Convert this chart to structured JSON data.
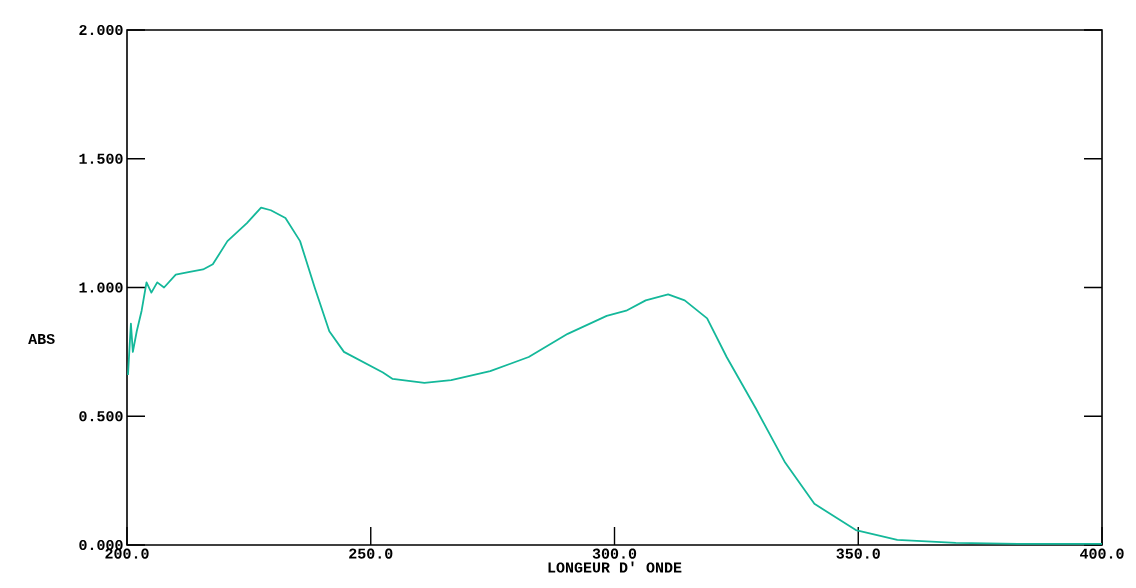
{
  "chart_data": {
    "type": "line",
    "xlabel": "LONGEUR D' ONDE",
    "ylabel": "ABS",
    "xlim": [
      200,
      400
    ],
    "ylim": [
      0,
      2
    ],
    "xticks": [
      {
        "value": 200,
        "label": "200.0"
      },
      {
        "value": 250,
        "label": "250.0"
      },
      {
        "value": 300,
        "label": "300.0"
      },
      {
        "value": 350,
        "label": "350.0"
      },
      {
        "value": 400,
        "label": "400.0"
      }
    ],
    "yticks": [
      {
        "value": 0,
        "label": "0.000"
      },
      {
        "value": 0.5,
        "label": "0.500"
      },
      {
        "value": 1,
        "label": "1.000"
      },
      {
        "value": 1.5,
        "label": "1.500"
      },
      {
        "value": 2,
        "label": "2.000"
      }
    ],
    "series": [
      {
        "color": "#14b89a",
        "x": [
          200.2,
          200.8,
          201.2,
          202,
          203,
          204,
          205,
          206.2,
          207.6,
          210,
          212.6,
          215.6,
          217.6,
          220.6,
          224.6,
          227.5,
          229.5,
          232.5,
          235.5,
          238.5,
          241.5,
          244.5,
          248.5,
          252.5,
          254.5,
          261,
          266.5,
          274.5,
          282.4,
          290.4,
          298.4,
          302.4,
          306.4,
          311,
          314.4,
          319,
          323,
          329,
          335,
          341,
          349.5,
          358,
          370,
          384,
          400
        ],
        "values": [
          0.66,
          0.86,
          0.75,
          0.83,
          0.91,
          1.02,
          0.98,
          1.02,
          1.0,
          1.05,
          1.06,
          1.07,
          1.09,
          1.18,
          1.25,
          1.31,
          1.3,
          1.27,
          1.18,
          1.0,
          0.83,
          0.75,
          0.71,
          0.67,
          0.645,
          0.63,
          0.64,
          0.675,
          0.73,
          0.82,
          0.89,
          0.91,
          0.95,
          0.973,
          0.95,
          0.88,
          0.73,
          0.53,
          0.32,
          0.16,
          0.058,
          0.02,
          0.008,
          0.004,
          0.004
        ]
      }
    ]
  }
}
